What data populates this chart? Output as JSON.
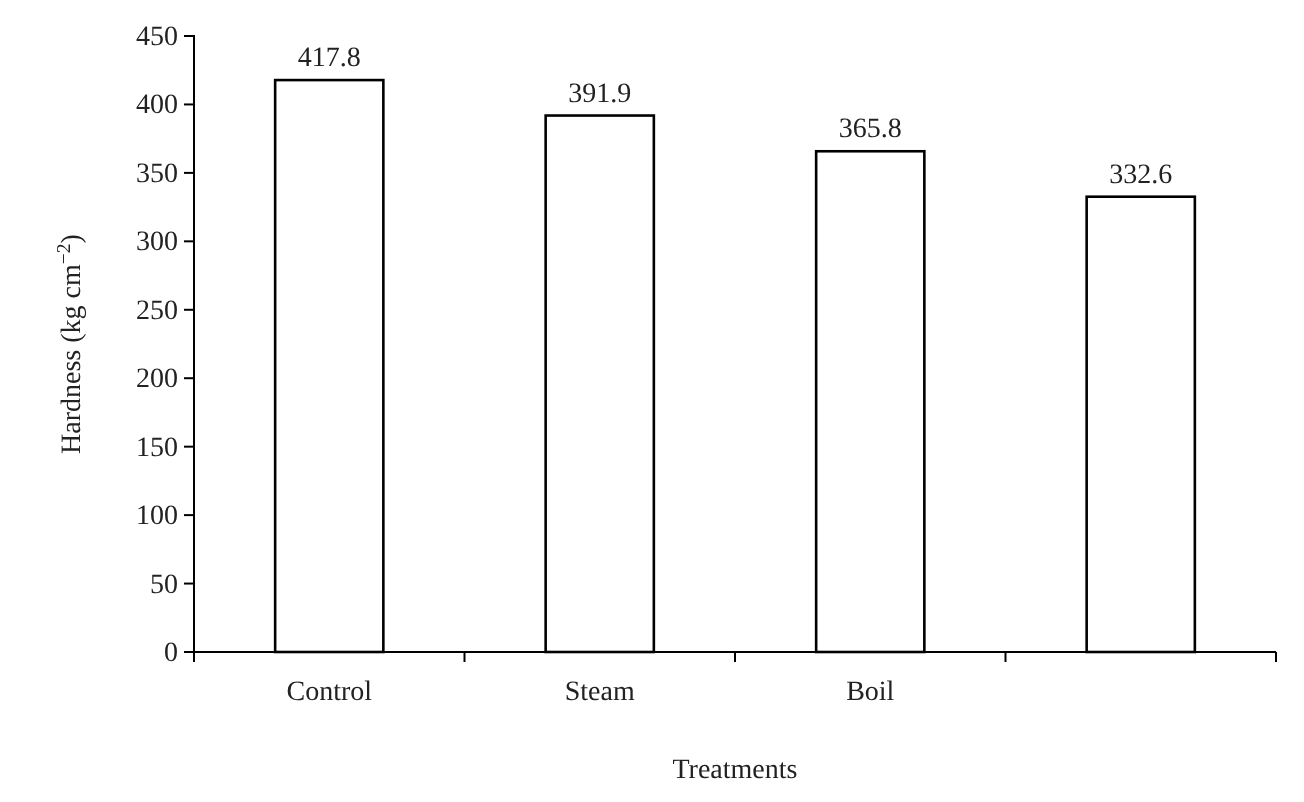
{
  "chart_data": {
    "type": "bar",
    "xlabel": "Treatments",
    "ylabel": "Hardness (kg cm$^{−2}$)",
    "categories": [
      "Control",
      "Steam",
      "Boil",
      null
    ],
    "values": [
      417.8,
      391.9,
      365.8,
      332.6
    ],
    "color": "#ffffff",
    "ylim": [
      0,
      450
    ],
    "yticks": [
      0,
      50,
      100,
      150,
      200,
      250,
      300,
      350,
      400,
      450
    ],
    "data_labels": true
  }
}
